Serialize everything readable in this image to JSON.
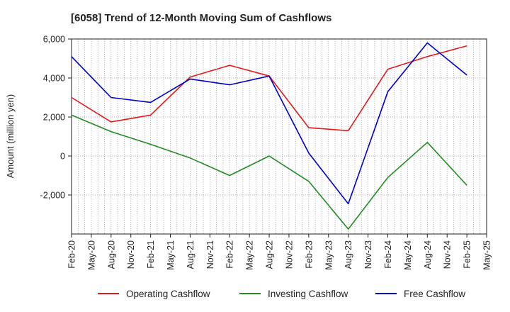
{
  "chart_data": {
    "type": "line",
    "title": "[6058]  Trend of 12-Month Moving Sum of Cashflows",
    "ylabel": "Amount (million yen)",
    "xlabel": "",
    "x_ticks": [
      "Feb-20",
      "May-20",
      "Aug-20",
      "Nov-20",
      "Feb-21",
      "May-21",
      "Aug-21",
      "Nov-21",
      "Feb-22",
      "May-22",
      "Aug-22",
      "Nov-22",
      "Feb-23",
      "May-23",
      "Aug-23",
      "Nov-23",
      "Feb-24",
      "May-24",
      "Aug-24",
      "Nov-24",
      "Feb-25",
      "May-25"
    ],
    "y_ticks": [
      "6,000",
      "4,000",
      "2,000",
      "0",
      "-2,000"
    ],
    "y_tick_values": [
      6000,
      4000,
      2000,
      0,
      -2000
    ],
    "ylim": [
      -4000,
      6000
    ],
    "grid": true,
    "legend_position": "bottom",
    "x": [
      "Feb-20",
      "Aug-20",
      "Feb-21",
      "Aug-21",
      "Feb-22",
      "Aug-22",
      "Feb-23",
      "Aug-23",
      "Feb-24",
      "Aug-24",
      "Feb-25"
    ],
    "series": [
      {
        "name": "Operating Cashflow",
        "color": "#e31a1c",
        "values": [
          3000,
          1750,
          2100,
          4050,
          4650,
          4100,
          1450,
          1300,
          4450,
          5100,
          5650
        ]
      },
      {
        "name": "Investing Cashflow",
        "color": "#228b22",
        "values": [
          2100,
          1250,
          600,
          -100,
          -1000,
          0,
          -1300,
          -3750,
          -1100,
          700,
          -1500
        ]
      },
      {
        "name": "Free Cashflow",
        "color": "#0000cd",
        "values": [
          5100,
          3000,
          2750,
          3950,
          3650,
          4100,
          150,
          -2450,
          3300,
          5800,
          4150
        ]
      }
    ]
  }
}
